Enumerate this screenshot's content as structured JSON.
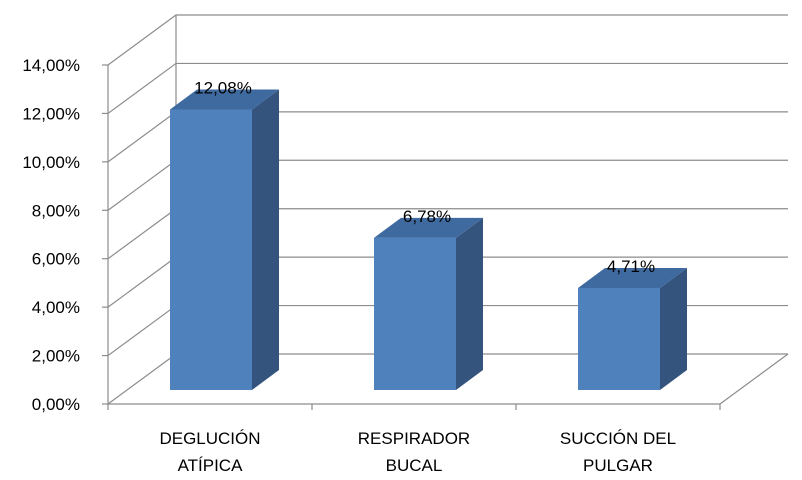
{
  "chart_data": {
    "type": "bar",
    "style": "3d-column",
    "categories": [
      "DEGLUCIÓN ATÍPICA",
      "RESPIRADOR BUCAL",
      "SUCCIÓN DEL PULGAR"
    ],
    "category_lines": [
      [
        "DEGLUCIÓN",
        "ATÍPICA"
      ],
      [
        "RESPIRADOR",
        "BUCAL"
      ],
      [
        "SUCCIÓN DEL",
        "PULGAR"
      ]
    ],
    "values": [
      12.08,
      6.78,
      4.71
    ],
    "data_labels": [
      "12,08%",
      "6,78%",
      "4,71%"
    ],
    "ylim": [
      0,
      14
    ],
    "yticks": [
      0,
      2,
      4,
      6,
      8,
      10,
      12,
      14
    ],
    "ytick_labels": [
      "0,00%",
      "2,00%",
      "4,00%",
      "6,00%",
      "8,00%",
      "10,00%",
      "12,00%",
      "14,00%"
    ],
    "grid": true,
    "legend": "none",
    "colors": {
      "bar_front": "#4f81bd",
      "bar_side": "#34547d",
      "bar_top": "#3f6aa0",
      "grid": "#8c8c8c"
    }
  }
}
